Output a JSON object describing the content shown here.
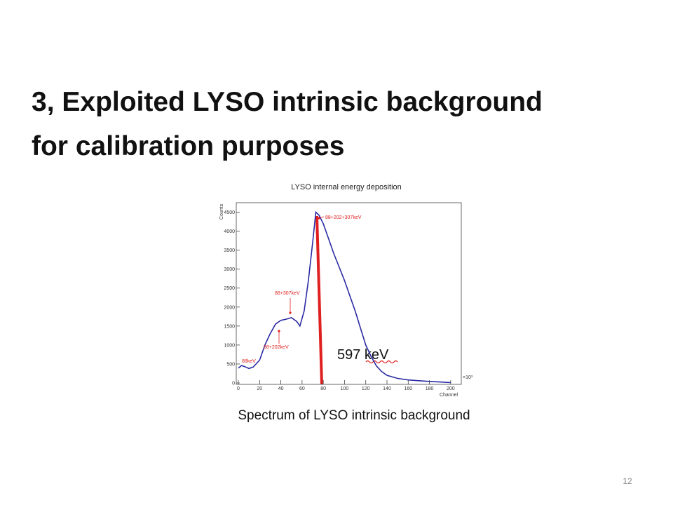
{
  "slide": {
    "title_lines": [
      "3, Exploited LYSO intrinsic background",
      "for calibration purposes"
    ],
    "page_number": "12"
  },
  "chart_data": {
    "type": "line",
    "title": "LYSO internal energy deposition",
    "x_label": "Channel",
    "y_label": "Counts",
    "x_multiplier": "×10³",
    "x": [
      0,
      3,
      6,
      10,
      14,
      20,
      25,
      30,
      35,
      40,
      45,
      50,
      55,
      58,
      62,
      66,
      70,
      73,
      76,
      80,
      85,
      90,
      95,
      100,
      105,
      110,
      115,
      120,
      125,
      130,
      135,
      140,
      150,
      160,
      170,
      180,
      190,
      200
    ],
    "series": [
      {
        "color": "#2b2ba3",
        "values": [
          390,
          460,
          430,
          380,
          420,
          600,
          1000,
          1300,
          1550,
          1650,
          1680,
          1720,
          1620,
          1500,
          1900,
          2700,
          3700,
          4500,
          4420,
          4200,
          3800,
          3400,
          3050,
          2700,
          2300,
          1900,
          1450,
          1000,
          700,
          450,
          300,
          200,
          120,
          80,
          60,
          40,
          25,
          10
        ]
      }
    ],
    "xlim": [
      0,
      210
    ],
    "ylim": [
      0,
      4750
    ],
    "xticks": [
      0,
      20,
      40,
      60,
      80,
      100,
      120,
      140,
      160,
      180,
      200
    ],
    "yticks": [
      0,
      500,
      1000,
      1500,
      2000,
      2500,
      3000,
      3500,
      4000,
      4500
    ],
    "annotations": [
      {
        "text": "88keV"
      },
      {
        "text": "88+202keV"
      },
      {
        "text": "88+307keV"
      },
      {
        "text": "88+202+307keV"
      }
    ],
    "energy_label": "597 keV",
    "caption": "Spectrum of LYSO intrinsic background"
  }
}
